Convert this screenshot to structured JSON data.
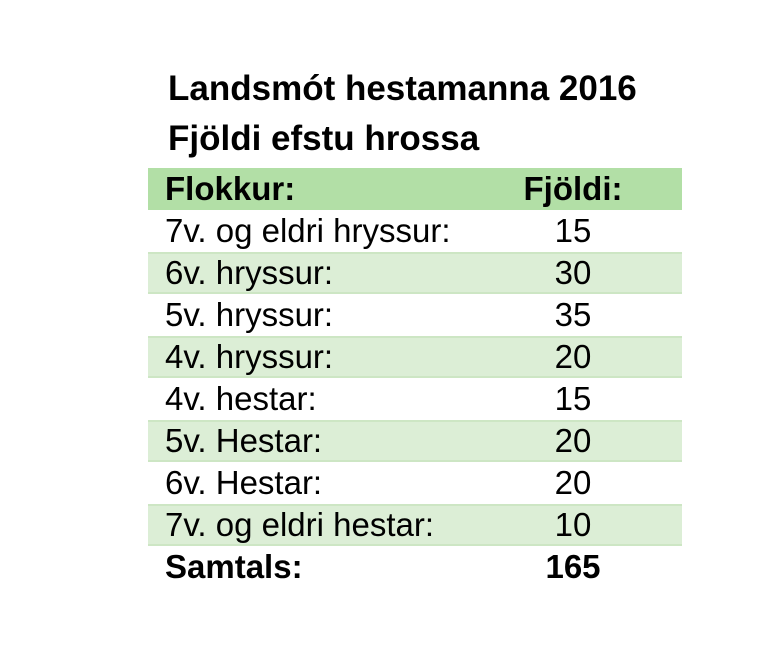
{
  "page": {
    "title": "Landsmót hestamanna 2016",
    "subtitle": "Fjöldi efstu hrossa"
  },
  "colors": {
    "header_green": "#b2dfa6",
    "banded_row_green": "#dceed6",
    "banded_row_border_green": "#cde6c4",
    "text": "#000000",
    "background": "#ffffff"
  },
  "table": {
    "columns": {
      "category": "Flokkur:",
      "count": "Fjöldi:"
    },
    "rows": [
      {
        "label": "7v. og eldri hryssur:",
        "value": "15"
      },
      {
        "label": "6v. hryssur:",
        "value": "30"
      },
      {
        "label": "5v. hryssur:",
        "value": "35"
      },
      {
        "label": "4v. hryssur:",
        "value": "20"
      },
      {
        "label": "4v. hestar:",
        "value": "15"
      },
      {
        "label": "5v. Hestar:",
        "value": "20"
      },
      {
        "label": "6v. Hestar:",
        "value": "20"
      },
      {
        "label": "7v. og eldri hestar:",
        "value": "10"
      }
    ],
    "total": {
      "label": "Samtals:",
      "value": "165"
    }
  },
  "chart_data": {
    "type": "table",
    "title": "Landsmót hestamanna 2016",
    "subtitle": "Fjöldi efstu hrossa",
    "columns": [
      "Flokkur:",
      "Fjöldi:"
    ],
    "categories": [
      "7v. og eldri hryssur",
      "6v. hryssur",
      "5v. hryssur",
      "4v. hryssur",
      "4v. hestar",
      "5v. Hestar",
      "6v. Hestar",
      "7v. og eldri hestar"
    ],
    "values": [
      15,
      30,
      35,
      20,
      15,
      20,
      20,
      10
    ],
    "total": 165
  }
}
